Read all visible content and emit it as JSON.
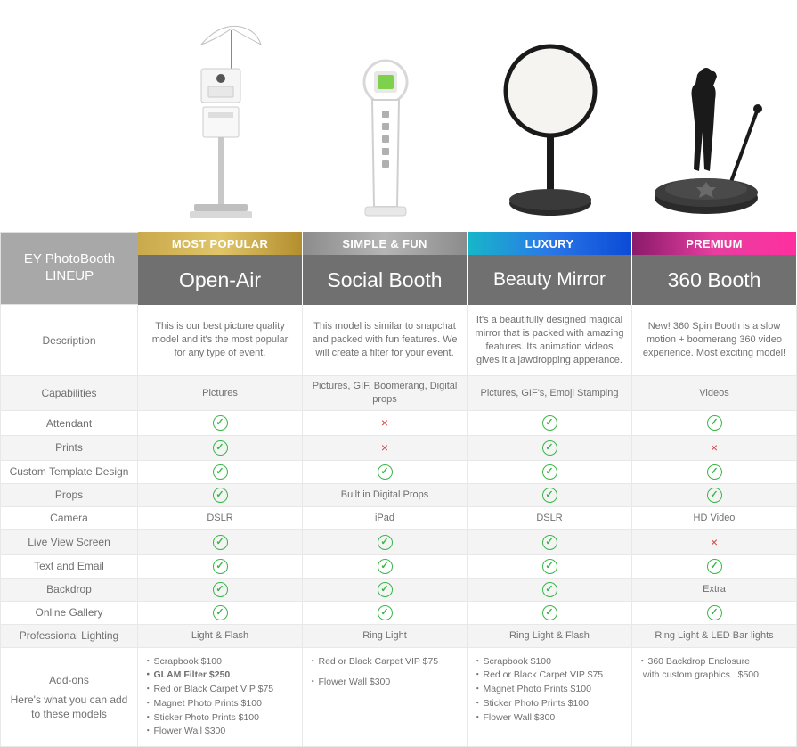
{
  "lineup_title": "EY PhotoBooth\nLINEUP",
  "columns": [
    {
      "badge": "MOST POPULAR",
      "badge_gradient": [
        "#c9a94b",
        "#e0c56a",
        "#b38e2e"
      ],
      "name": "Open-Air",
      "description": "This is our best picture quality model and it's the most popular for any type of event.",
      "capabilities": "Pictures",
      "attendant": "check",
      "prints": "check",
      "custom_template": "check",
      "props": "check",
      "camera": "DSLR",
      "live_view": "check",
      "text_email": "check",
      "backdrop": "check",
      "online_gallery": "check",
      "lighting": "Light & Flash",
      "addons": [
        {
          "label": "Scrapbook",
          "price": "$100"
        },
        {
          "label": "GLAM Filter",
          "price": "$250",
          "bold": true
        },
        {
          "label": "Red or Black Carpet VIP",
          "price": "$75"
        },
        {
          "label": "Magnet Photo Prints",
          "price": "$100"
        },
        {
          "label": "Sticker Photo Prints",
          "price": "$100"
        },
        {
          "label": "Flower Wall",
          "price": "$300"
        }
      ]
    },
    {
      "badge": "SIMPLE & FUN",
      "badge_gradient": [
        "#8c8c8c",
        "#b5b5b5",
        "#8c8c8c"
      ],
      "name": "Social Booth",
      "description": "This model is similar to snapchat and packed with fun features. We will create a filter for your event.",
      "capabilities": "Pictures, GIF, Boomerang, Digital props",
      "attendant": "cross",
      "prints": "cross",
      "custom_template": "check",
      "props": "Built in Digital Props",
      "camera": "iPad",
      "live_view": "check",
      "text_email": "check",
      "backdrop": "check",
      "online_gallery": "check",
      "lighting": "Ring Light",
      "addons": [
        {
          "label": "Red or Black Carpet VIP",
          "price": "$75"
        },
        {
          "label": "Flower Wall",
          "price": "$300"
        }
      ],
      "addons_gap": true
    },
    {
      "badge": "LUXURY",
      "badge_gradient": [
        "#17b6c9",
        "#2a77e8",
        "#0b4bd6"
      ],
      "name": "Beauty Mirror",
      "name_small": true,
      "description": "It's a beautifully designed magical mirror that is packed with amazing features. Its animation videos gives it a jawdropping apperance.",
      "capabilities": "Pictures, GIF's, Emoji Stamping",
      "attendant": "check",
      "prints": "check",
      "custom_template": "check",
      "props": "check",
      "camera": "DSLR",
      "live_view": "check",
      "text_email": "check",
      "backdrop": "check",
      "online_gallery": "check",
      "lighting": "Ring Light & Flash",
      "addons": [
        {
          "label": "Scrapbook",
          "price": "$100"
        },
        {
          "label": "Red or Black Carpet VIP",
          "price": "$75"
        },
        {
          "label": "Magnet Photo Prints",
          "price": "$100"
        },
        {
          "label": "Sticker Photo Prints",
          "price": "$100"
        },
        {
          "label": "Flower Wall",
          "price": "$300"
        }
      ]
    },
    {
      "badge": "PREMIUM",
      "badge_gradient": [
        "#8a1a6a",
        "#e63fa0",
        "#ff2fa0"
      ],
      "name": "360 Booth",
      "description": "New! 360 Spin Booth is a slow motion + boomerang 360 video experience. Most exciting model!",
      "capabilities": "Videos",
      "attendant": "check",
      "prints": "cross",
      "custom_template": "check",
      "props": "check",
      "camera": "HD Video",
      "live_view": "cross",
      "text_email": "check",
      "backdrop": "Extra",
      "online_gallery": "check",
      "lighting": "Ring Light & LED Bar lights",
      "addons": [
        {
          "label": "360 Backdrop Enclosure with custom graphics",
          "price": "$500",
          "wrap": true
        }
      ]
    }
  ],
  "rows": [
    {
      "key": "description",
      "label": "Description",
      "alt": false,
      "desc": true
    },
    {
      "key": "capabilities",
      "label": "Capabilities",
      "alt": true
    },
    {
      "key": "attendant",
      "label": "Attendant",
      "alt": false
    },
    {
      "key": "prints",
      "label": "Prints",
      "alt": true
    },
    {
      "key": "custom_template",
      "label": "Custom Template Design",
      "alt": false
    },
    {
      "key": "props",
      "label": "Props",
      "alt": true
    },
    {
      "key": "camera",
      "label": "Camera",
      "alt": false
    },
    {
      "key": "live_view",
      "label": "Live View Screen",
      "alt": true
    },
    {
      "key": "text_email",
      "label": "Text and Email",
      "alt": false
    },
    {
      "key": "backdrop",
      "label": "Backdrop",
      "alt": true
    },
    {
      "key": "online_gallery",
      "label": "Online Gallery",
      "alt": false
    },
    {
      "key": "lighting",
      "label": "Professional Lighting",
      "alt": true
    }
  ],
  "addons_row": {
    "label_top": "Add-ons",
    "label_bottom": "Here's what you can add to these models"
  }
}
